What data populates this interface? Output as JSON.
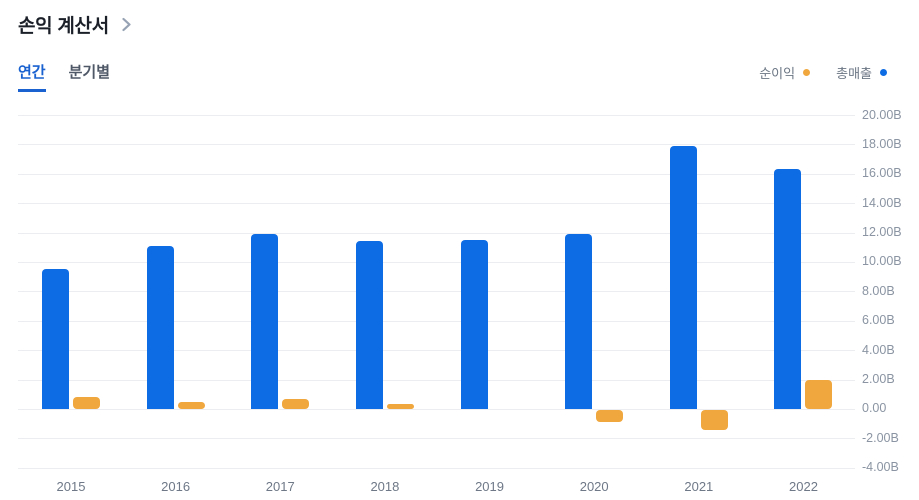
{
  "header": {
    "title": "손익 계산서"
  },
  "tabs": [
    {
      "label": "연간",
      "active": true
    },
    {
      "label": "분기별",
      "active": false
    }
  ],
  "legend": [
    {
      "label": "순이익",
      "color": "#f0a73e"
    },
    {
      "label": "총매출",
      "color": "#0d6ce4"
    }
  ],
  "colors": {
    "net_income": "#f0a73e",
    "total_revenue": "#0d6ce4",
    "active_tab": "#1a62d0",
    "gridline": "#ebedf0",
    "axis_text": "#8a94a2"
  },
  "chart_data": {
    "type": "bar",
    "title": "손익 계산서 (연간)",
    "categories": [
      "2015",
      "2016",
      "2017",
      "2018",
      "2019",
      "2020",
      "2021",
      "2022"
    ],
    "series": [
      {
        "name": "순이익",
        "key": "net-income",
        "slot": "right",
        "color": "#f0a73e",
        "values": [
          0.8,
          0.5,
          0.65,
          0.35,
          0.0,
          -0.85,
          -1.4,
          2.0
        ]
      },
      {
        "name": "총매출",
        "key": "total-revenue",
        "slot": "left",
        "color": "#0d6ce4",
        "values": [
          9.5,
          11.1,
          11.9,
          11.4,
          11.5,
          11.9,
          17.9,
          16.3
        ]
      }
    ],
    "unit": "B",
    "ylim": [
      -4,
      20
    ],
    "y_ticks": [
      {
        "v": 20,
        "label": "20.00B"
      },
      {
        "v": 18,
        "label": "18.00B"
      },
      {
        "v": 16,
        "label": "16.00B"
      },
      {
        "v": 14,
        "label": "14.00B"
      },
      {
        "v": 12,
        "label": "12.00B"
      },
      {
        "v": 10,
        "label": "10.00B"
      },
      {
        "v": 8,
        "label": "8.00B"
      },
      {
        "v": 6,
        "label": "6.00B"
      },
      {
        "v": 4,
        "label": "4.00B"
      },
      {
        "v": 2,
        "label": "2.00B"
      },
      {
        "v": 0,
        "label": "0.00"
      },
      {
        "v": -2,
        "label": "-2.00B"
      },
      {
        "v": -4,
        "label": "-4.00B"
      }
    ],
    "grid": true,
    "legend_position": "top-right"
  }
}
